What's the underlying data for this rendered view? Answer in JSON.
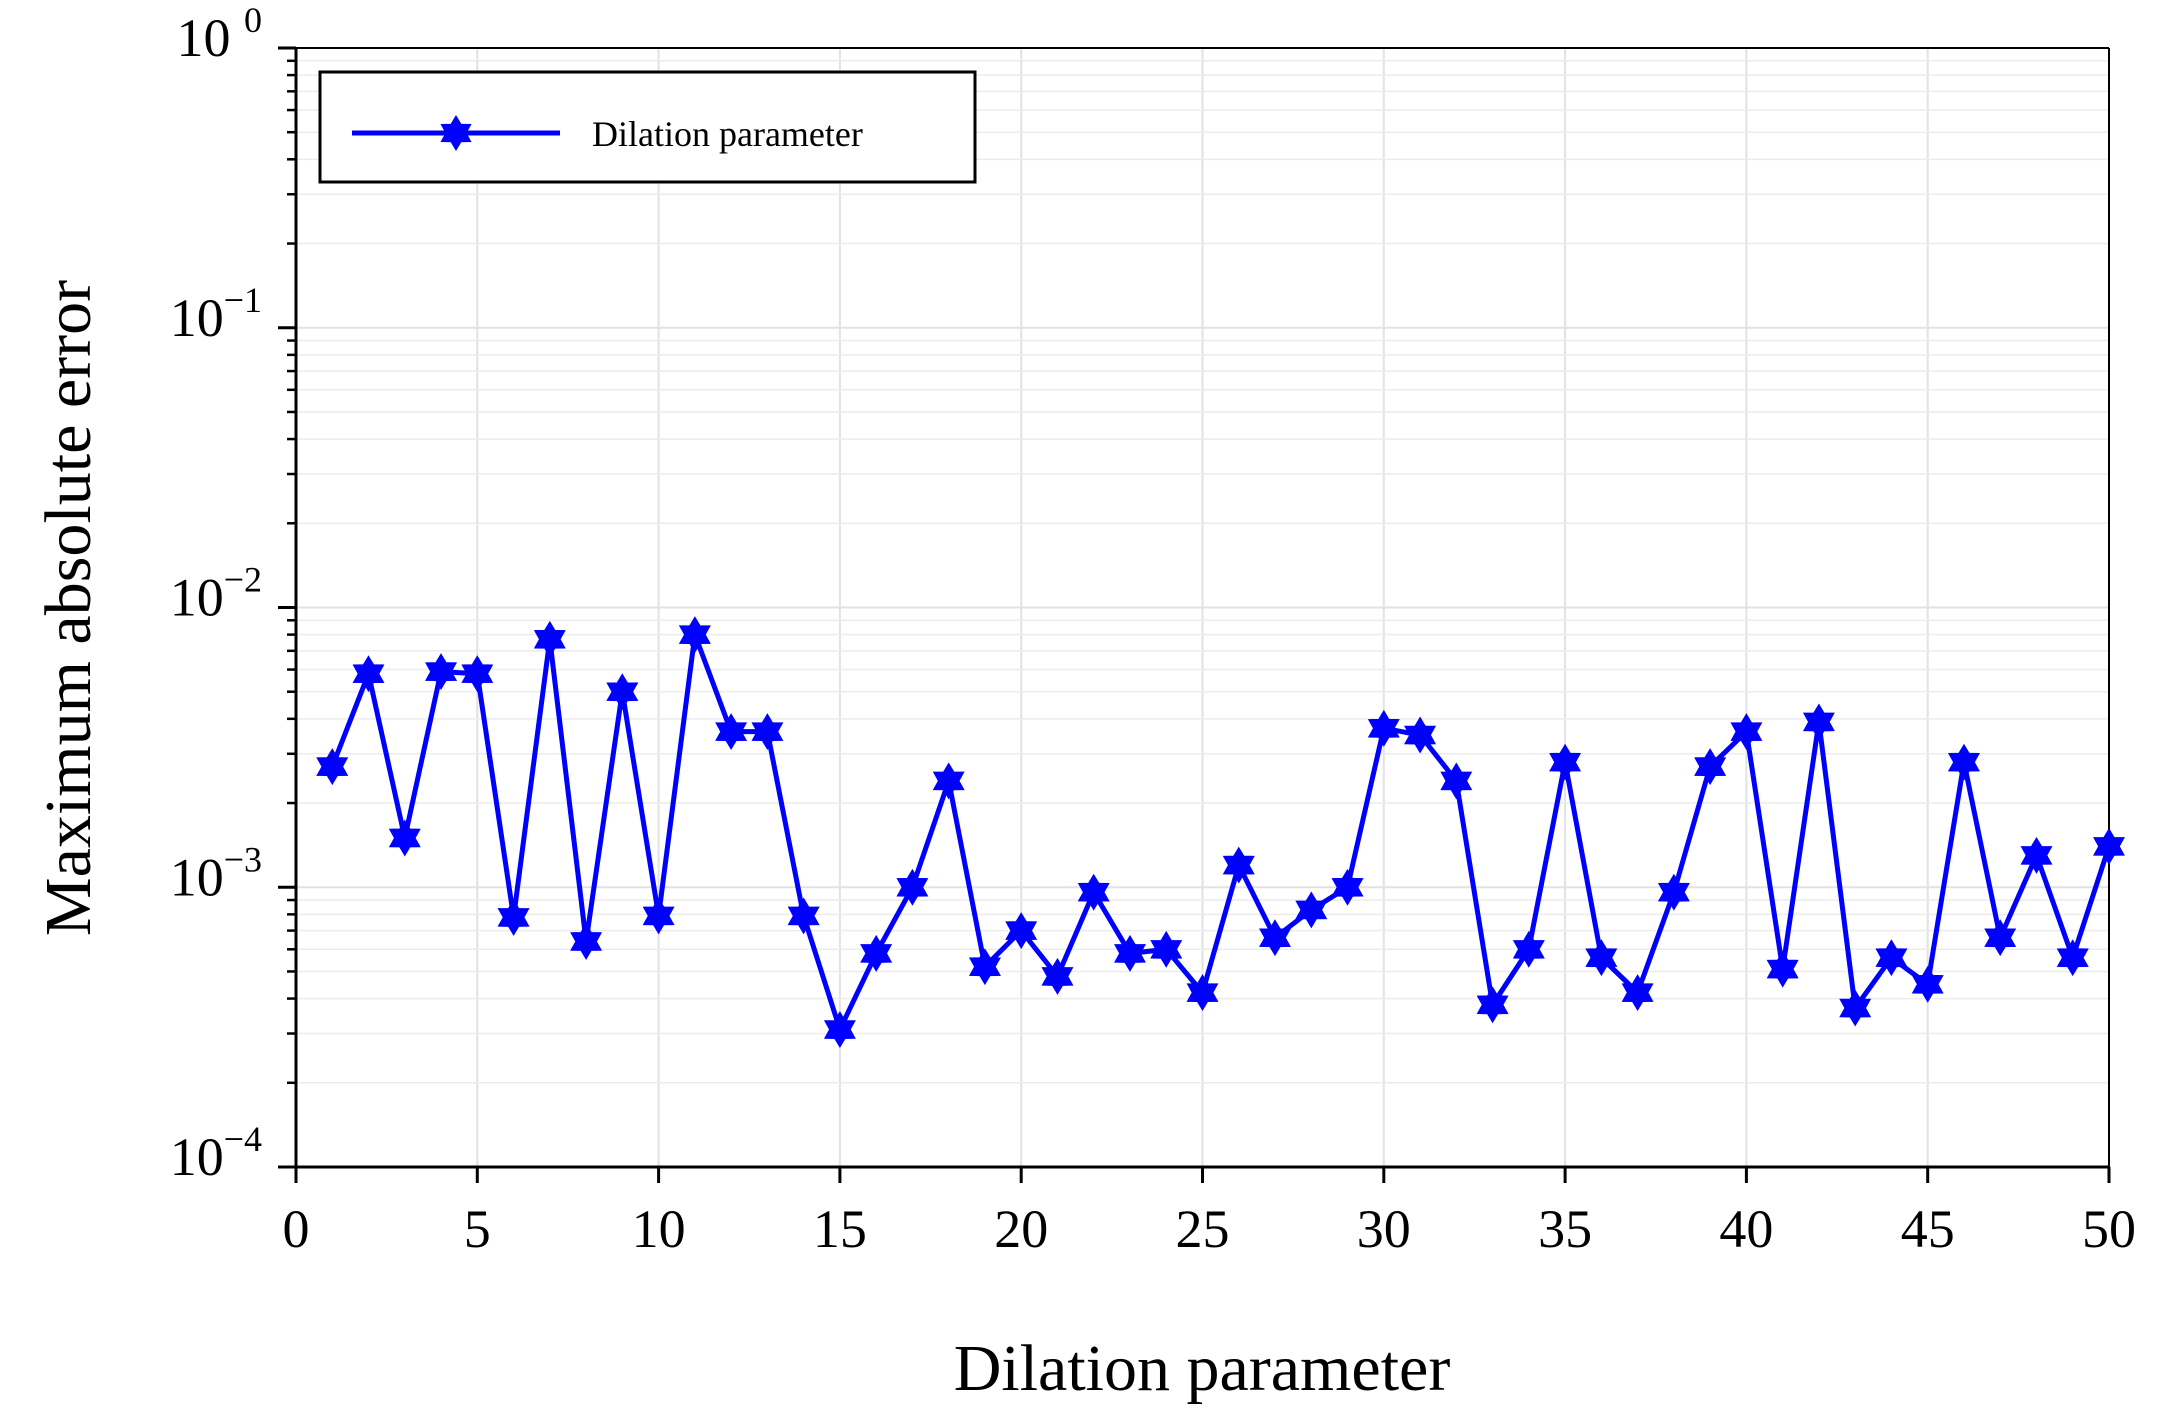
{
  "chart_data": {
    "type": "line",
    "title": "",
    "xlabel": "Dilation parameter",
    "ylabel": "Maximum absolute error",
    "yscale": "log",
    "xlim": [
      0,
      50
    ],
    "ylim": [
      0.0001,
      1
    ],
    "grid": true,
    "legend_position": "top-left",
    "x_ticks": [
      "0",
      "5",
      "10",
      "15",
      "20",
      "25",
      "30",
      "35",
      "40",
      "45",
      "50"
    ],
    "y_ticks": [
      {
        "base": "10",
        "exp": "−4",
        "value": 0.0001
      },
      {
        "base": "10",
        "exp": "−3",
        "value": 0.001
      },
      {
        "base": "10",
        "exp": "−2",
        "value": 0.01
      },
      {
        "base": "10",
        "exp": "−1",
        "value": 0.1
      },
      {
        "base": "10 ",
        "exp": "0",
        "value": 1
      }
    ],
    "series": [
      {
        "name": "Dilation parameter",
        "color": "#0000ff",
        "marker": "six-point-star",
        "x": [
          1,
          2,
          3,
          4,
          5,
          6,
          7,
          8,
          9,
          10,
          11,
          12,
          13,
          14,
          15,
          16,
          17,
          18,
          19,
          20,
          21,
          22,
          23,
          24,
          25,
          26,
          27,
          28,
          29,
          30,
          31,
          32,
          33,
          34,
          35,
          36,
          37,
          38,
          39,
          40,
          41,
          42,
          43,
          44,
          45,
          46,
          47,
          48,
          49,
          50
        ],
        "values": [
          0.0027,
          0.0058,
          0.0015,
          0.0059,
          0.0058,
          0.00078,
          0.0077,
          0.00064,
          0.005,
          0.00079,
          0.008,
          0.0036,
          0.0036,
          0.00079,
          0.00031,
          0.00058,
          0.001,
          0.0024,
          0.00052,
          0.0007,
          0.00048,
          0.00096,
          0.00058,
          0.0006,
          0.00042,
          0.0012,
          0.00066,
          0.00083,
          0.001,
          0.0037,
          0.0035,
          0.0024,
          0.00038,
          0.0006,
          0.0028,
          0.00056,
          0.00042,
          0.00096,
          0.0027,
          0.0036,
          0.00051,
          0.0039,
          0.00037,
          0.00056,
          0.00045,
          0.0028,
          0.00066,
          0.0013,
          0.00056,
          0.0014
        ]
      }
    ]
  }
}
